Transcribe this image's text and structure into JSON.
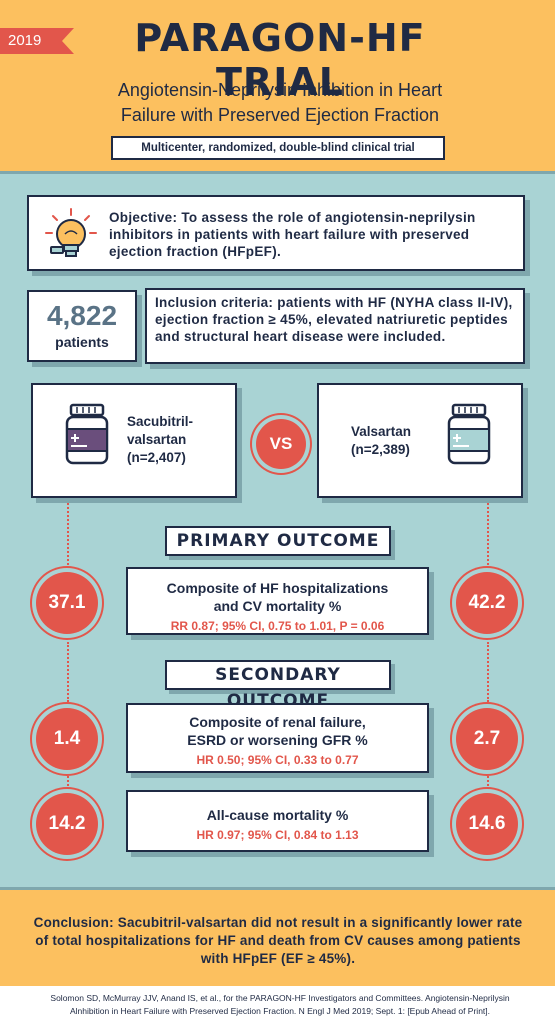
{
  "header": {
    "year": "2019",
    "title": "PARAGON-HF TRIAL",
    "subtitle_line1": "Angiotensin-Neprilysin Inhibition in Heart",
    "subtitle_line2": "Failure with Preserved Ejection Fraction",
    "design": "Multicenter, randomized, double-blind clinical trial"
  },
  "objective": {
    "text": "Objective: To assess the role of angiotensin-neprilysin inhibitors in patients with heart failure with preserved ejection fraction (HFpEF).",
    "icon": "lightbulb-icon"
  },
  "patients": {
    "count": "4,822",
    "label": "patients"
  },
  "inclusion": {
    "text": "Inclusion criteria: patients with HF (NYHA class II-IV), ejection fraction ≥ 45%, elevated natriuretic peptides and structural heart disease were included."
  },
  "arms": {
    "a_line1": "Sacubitril-",
    "a_line2": "valsartan",
    "a_line3": "(n=2,407)",
    "b_line1": "Valsartan",
    "b_line2": "(n=2,389)",
    "vs": "VS",
    "icon": "pill-bottle-icon"
  },
  "primary": {
    "title": "PRIMARY OUTCOME",
    "label_line1": "Composite of HF hospitalizations",
    "label_line2": "and CV mortality %",
    "stat": "RR 0.87; 95% CI, 0.75 to 1.01, P = 0.06",
    "value_a": "37.1",
    "value_b": "42.2"
  },
  "secondary": {
    "title": "SECONDARY OUTCOME",
    "renal": {
      "label_line1": "Composite of renal failure,",
      "label_line2": "ESRD or worsening GFR %",
      "stat": "HR 0.50; 95% CI, 0.33 to 0.77",
      "value_a": "1.4",
      "value_b": "2.7"
    },
    "mortality": {
      "label": "All-cause mortality %",
      "stat": "HR 0.97; 95% CI, 0.84 to 1.13",
      "value_a": "14.2",
      "value_b": "14.6"
    }
  },
  "conclusion": {
    "text": "Conclusion: Sacubitril-valsartan did not result in a significantly lower rate of total hospitalizations for HF and death from CV causes among patients with HFpEF (EF ≥ 45%)."
  },
  "reference": {
    "line1": "Solomon SD, McMurray JJV, Anand IS, et al., for the PARAGON-HF Investigators and Committees. Angiotensin-Neprilysin",
    "line2": "Alnhibition in Heart Failure with Preserved Ejection Fraction. N Engl J Med 2019; Sept. 1: [Epub Ahead of Print]."
  },
  "colors": {
    "header_bg": "#fcc05f",
    "body_bg": "#a9d3d4",
    "accent_red": "#e2564b",
    "navy": "#1f2a44",
    "shadow": "#7fa7ad"
  }
}
